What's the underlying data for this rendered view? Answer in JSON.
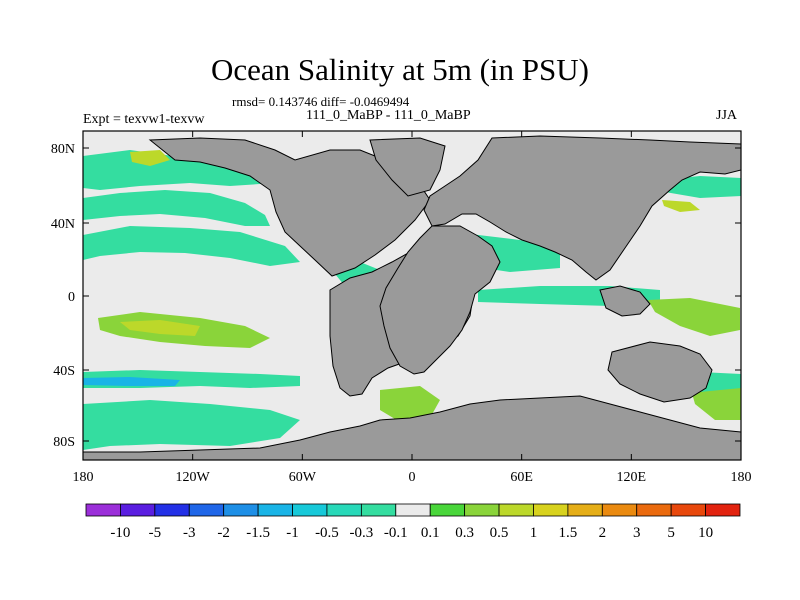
{
  "header": {
    "title": "Ocean Salinity at 5m (in PSU)",
    "stats": "rmsd= 0.143746 diff= -0.0469494",
    "runs": "111_0_MaBP - 111_0_MaBP",
    "experiment": "Expt = texvw1-texvw",
    "season": "JJA"
  },
  "axes": {
    "y_ticks": [
      "80N",
      "40N",
      "0",
      "40S",
      "80S"
    ],
    "x_ticks": [
      "180",
      "120W",
      "60W",
      "0",
      "60E",
      "120E",
      "180"
    ]
  },
  "colorbar": {
    "labels": [
      "-10",
      "-5",
      "-3",
      "-2",
      "-1.5",
      "-1",
      "-0.5",
      "-0.3",
      "-0.1",
      "0.1",
      "0.3",
      "0.5",
      "1",
      "1.5",
      "2",
      "3",
      "5",
      "10"
    ],
    "colors": [
      "#9b2fd9",
      "#5a1ee0",
      "#2330e6",
      "#1f66e8",
      "#1e8fe6",
      "#19b4e6",
      "#17c9d9",
      "#28d9b9",
      "#34dda0",
      "#ebebeb",
      "#49d63a",
      "#8ad43a",
      "#bcd82a",
      "#d8d21e",
      "#e5ae18",
      "#ea8a10",
      "#ea6a0e",
      "#e8480c",
      "#e2230f"
    ]
  },
  "colors": {
    "land": "#9a9a9a",
    "ocean_neutral": "#ebebeb"
  }
}
